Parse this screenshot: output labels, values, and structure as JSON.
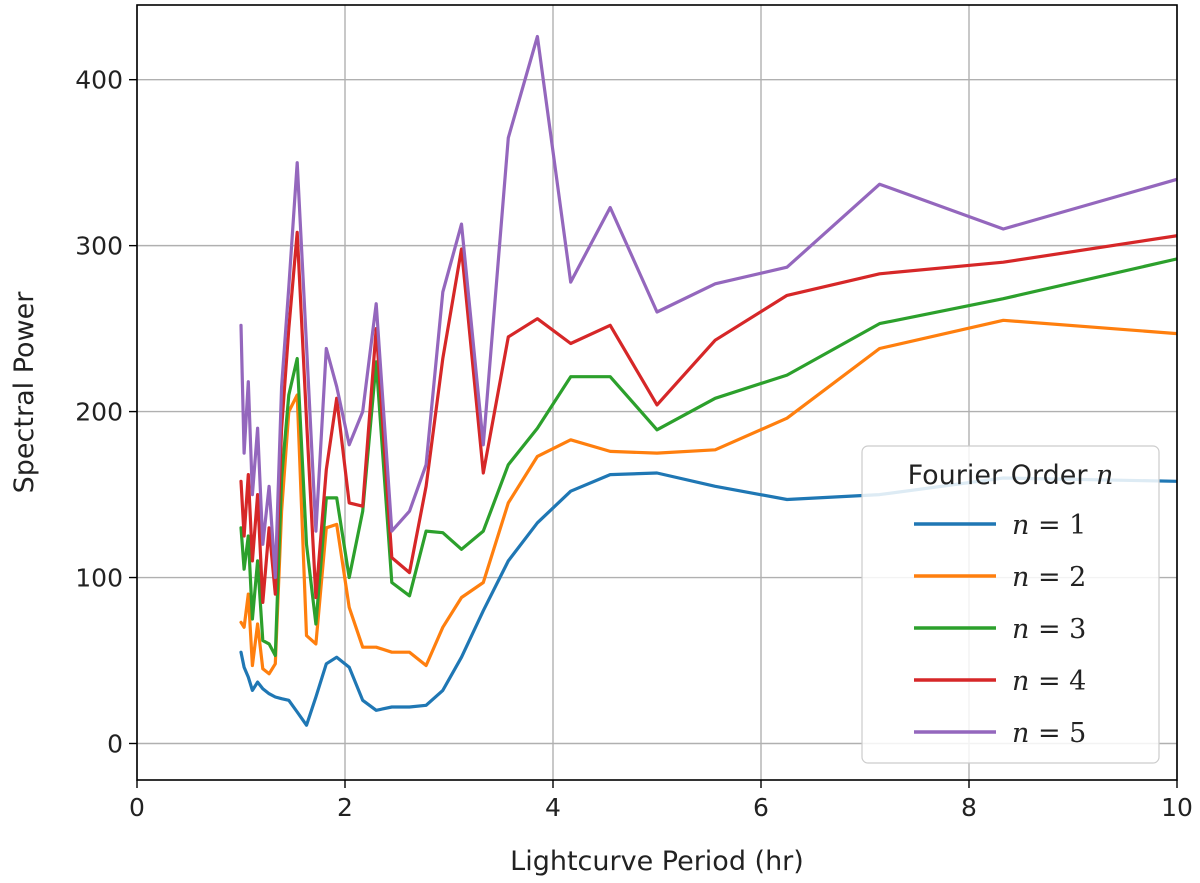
{
  "chart_data": {
    "type": "line",
    "xlabel": "Lightcurve Period (hr)",
    "ylabel": "Spectral Power",
    "xlim": [
      0,
      10
    ],
    "ylim": [
      -22,
      445
    ],
    "xticks": [
      0,
      2,
      4,
      6,
      8,
      10
    ],
    "yticks": [
      0,
      100,
      200,
      300,
      400
    ],
    "grid": true,
    "legend": {
      "title_prefix": "Fourier Order ",
      "title_var": "n",
      "placement": "lower-right"
    },
    "series": [
      {
        "name": "n = 1",
        "var": "n",
        "eq": " = 1",
        "color": "#1f77b4",
        "x": [
          1.0,
          1.03,
          1.07,
          1.11,
          1.16,
          1.21,
          1.27,
          1.33,
          1.39,
          1.46,
          1.54,
          1.63,
          1.72,
          1.82,
          1.92,
          2.04,
          2.17,
          2.3,
          2.45,
          2.62,
          2.78,
          2.94,
          3.12,
          3.33,
          3.57,
          3.85,
          4.17,
          4.55,
          5.0,
          5.56,
          6.25,
          7.14,
          8.33,
          10.0
        ],
        "y": [
          55,
          46,
          40,
          32,
          37,
          33,
          30,
          28,
          27,
          26,
          19,
          11,
          28,
          48,
          52,
          46,
          26,
          20,
          22,
          22,
          23,
          32,
          52,
          80,
          110,
          133,
          152,
          162,
          163,
          155,
          147,
          150,
          160,
          158
        ]
      },
      {
        "name": "n = 2",
        "var": "n",
        "eq": " = 2",
        "color": "#ff7f0e",
        "x": [
          1.0,
          1.03,
          1.07,
          1.11,
          1.16,
          1.21,
          1.27,
          1.33,
          1.39,
          1.46,
          1.54,
          1.63,
          1.72,
          1.82,
          1.92,
          2.04,
          2.17,
          2.3,
          2.45,
          2.62,
          2.78,
          2.94,
          3.12,
          3.33,
          3.57,
          3.85,
          4.17,
          4.55,
          5.0,
          5.56,
          6.25,
          7.14,
          8.33,
          10.0
        ],
        "y": [
          73,
          70,
          90,
          47,
          72,
          45,
          42,
          48,
          140,
          200,
          210,
          65,
          60,
          130,
          132,
          82,
          58,
          58,
          55,
          55,
          47,
          70,
          88,
          97,
          145,
          173,
          183,
          176,
          175,
          177,
          196,
          238,
          255,
          247
        ]
      },
      {
        "name": "n = 3",
        "var": "n",
        "eq": " = 3",
        "color": "#2ca02c",
        "x": [
          1.0,
          1.03,
          1.07,
          1.11,
          1.16,
          1.21,
          1.27,
          1.33,
          1.39,
          1.46,
          1.54,
          1.63,
          1.72,
          1.82,
          1.92,
          2.04,
          2.17,
          2.3,
          2.45,
          2.62,
          2.78,
          2.94,
          3.12,
          3.33,
          3.57,
          3.85,
          4.17,
          4.55,
          5.0,
          5.56,
          6.25,
          7.14,
          8.33,
          10.0
        ],
        "y": [
          130,
          105,
          125,
          75,
          110,
          62,
          60,
          53,
          160,
          210,
          232,
          120,
          72,
          148,
          148,
          100,
          140,
          230,
          97,
          89,
          128,
          127,
          117,
          128,
          168,
          190,
          221,
          221,
          189,
          208,
          222,
          253,
          268,
          292
        ]
      },
      {
        "name": "n = 4",
        "var": "n",
        "eq": " = 4",
        "color": "#d62728",
        "x": [
          1.0,
          1.03,
          1.07,
          1.11,
          1.16,
          1.21,
          1.27,
          1.33,
          1.39,
          1.46,
          1.54,
          1.63,
          1.72,
          1.82,
          1.92,
          2.04,
          2.17,
          2.3,
          2.45,
          2.62,
          2.78,
          2.94,
          3.12,
          3.33,
          3.57,
          3.85,
          4.17,
          4.55,
          5.0,
          5.56,
          6.25,
          7.14,
          8.33,
          10.0
        ],
        "y": [
          158,
          125,
          162,
          110,
          150,
          85,
          130,
          90,
          190,
          250,
          308,
          195,
          88,
          165,
          208,
          145,
          143,
          250,
          112,
          103,
          155,
          232,
          298,
          163,
          245,
          256,
          241,
          252,
          204,
          243,
          270,
          283,
          290,
          306
        ]
      },
      {
        "name": "n = 5",
        "var": "n",
        "eq": " = 5",
        "color": "#9467bd",
        "x": [
          1.0,
          1.03,
          1.07,
          1.11,
          1.16,
          1.21,
          1.27,
          1.33,
          1.39,
          1.46,
          1.54,
          1.63,
          1.72,
          1.82,
          1.92,
          2.04,
          2.17,
          2.3,
          2.45,
          2.62,
          2.78,
          2.94,
          3.12,
          3.33,
          3.57,
          3.85,
          4.17,
          4.55,
          5.0,
          5.56,
          6.25,
          7.14,
          8.33,
          10.0
        ],
        "y": [
          252,
          175,
          218,
          150,
          190,
          120,
          155,
          100,
          215,
          275,
          350,
          240,
          128,
          238,
          215,
          180,
          200,
          265,
          128,
          140,
          168,
          272,
          313,
          180,
          365,
          426,
          278,
          323,
          260,
          277,
          287,
          337,
          310,
          340
        ]
      }
    ]
  }
}
